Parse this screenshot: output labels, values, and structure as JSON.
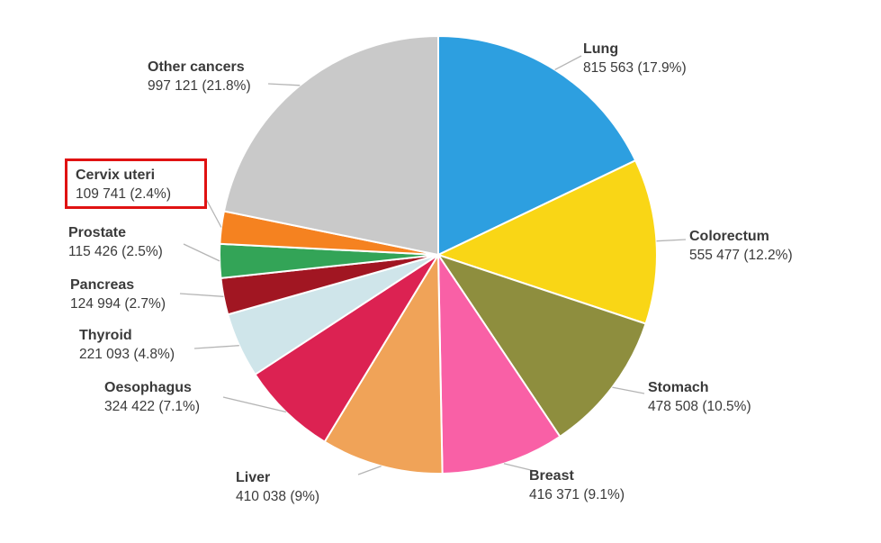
{
  "chart_data": {
    "type": "pie",
    "direction": "clockwise",
    "start_angle": "top",
    "background_color": "#ffffff",
    "slice_border_color": "#ffffff",
    "leader_line_color": "#b5b5b5",
    "label_text_color": "#3a3a3a",
    "highlight": {
      "slice": "Cervix uteri",
      "style": "red-box-around-label",
      "color": "#e01212"
    },
    "slices": [
      {
        "label": "Lung",
        "value": 815563,
        "percent": 17.9,
        "value_text": "815 563 (17.9%)",
        "color": "#2d9fe0"
      },
      {
        "label": "Colorectum",
        "value": 555477,
        "percent": 12.2,
        "value_text": "555 477 (12.2%)",
        "color": "#f9d616"
      },
      {
        "label": "Stomach",
        "value": 478508,
        "percent": 10.5,
        "value_text": "478 508 (10.5%)",
        "color": "#8e8e3e"
      },
      {
        "label": "Breast",
        "value": 416371,
        "percent": 9.1,
        "value_text": "416 371 (9.1%)",
        "color": "#f960a6"
      },
      {
        "label": "Liver",
        "value": 410038,
        "percent": 9.0,
        "value_text": "410 038 (9%)",
        "color": "#f0a358"
      },
      {
        "label": "Oesophagus",
        "value": 324422,
        "percent": 7.1,
        "value_text": "324 422 (7.1%)",
        "color": "#dc2252"
      },
      {
        "label": "Thyroid",
        "value": 221093,
        "percent": 4.8,
        "value_text": "221 093 (4.8%)",
        "color": "#cfe5ea"
      },
      {
        "label": "Pancreas",
        "value": 124994,
        "percent": 2.7,
        "value_text": "124 994 (2.7%)",
        "color": "#a11622"
      },
      {
        "label": "Prostate",
        "value": 115426,
        "percent": 2.5,
        "value_text": "115 426 (2.5%)",
        "color": "#33a457"
      },
      {
        "label": "Cervix uteri",
        "value": 109741,
        "percent": 2.4,
        "value_text": "109 741 (2.4%)",
        "color": "#f58220"
      },
      {
        "label": "Other cancers",
        "value": 997121,
        "percent": 21.8,
        "value_text": "997 121 (21.8%)",
        "color": "#c9c9c9"
      }
    ]
  }
}
